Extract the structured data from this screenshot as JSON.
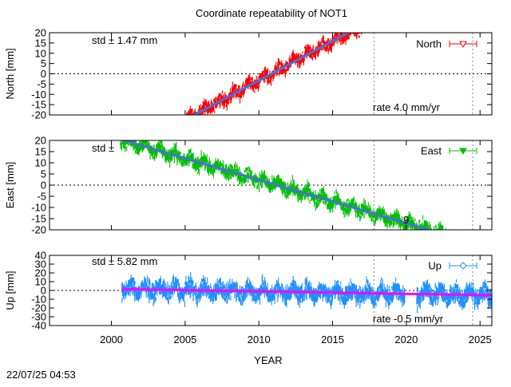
{
  "chart_data": {
    "type": "scatter",
    "title": "Coordinate repeatability of NOT1",
    "xlabel": "YEAR",
    "xlim": [
      1995.8,
      2025.8
    ],
    "xticks": [
      2000,
      2005,
      2010,
      2015,
      2020,
      2025
    ],
    "vlines": [
      2017.8,
      2024.5
    ],
    "timestamp": "22/07/25 04:53",
    "panels": [
      {
        "name": "North",
        "ylabel": "North [mm]",
        "legend": "North",
        "color": "#ff0000",
        "marker": "open-down-triangle",
        "ylim": [
          -20,
          20
        ],
        "yticks": [
          20,
          15,
          10,
          5,
          0,
          -5,
          -10,
          -15,
          -20
        ],
        "std_label": "std ± 1.47 mm",
        "rate_label": "rate  4.0 mm/yr",
        "x_range": [
          2005.0,
          2017.0
        ],
        "trend": {
          "x": [
            2005.5,
            2016.2
          ],
          "y": [
            -20.5,
            20.5
          ]
        },
        "scatter_amp": 4.5,
        "trend_color": "#4a6ee0"
      },
      {
        "name": "East",
        "ylabel": "East [mm]",
        "legend": "East",
        "color": "#00c000",
        "marker": "filled-down-triangle",
        "ylim": [
          -20,
          20
        ],
        "yticks": [
          20,
          15,
          10,
          5,
          0,
          -5,
          -10,
          -15,
          -20
        ],
        "std_label": "std ±",
        "rate_label": "9",
        "x_range": [
          2000.6,
          2023.2
        ],
        "trend": {
          "x": [
            2000.6,
            2021.8
          ],
          "y": [
            20.5,
            -20.5
          ]
        },
        "scatter_amp": 4.5,
        "trend_color": "#4a6ee0"
      },
      {
        "name": "Up",
        "ylabel": "Up [mm]",
        "legend": "Up",
        "color": "#1e90ff",
        "marker": "open-diamond",
        "ylim": [
          -40,
          40
        ],
        "yticks": [
          40,
          30,
          20,
          10,
          0,
          -10,
          -20,
          -30,
          -40
        ],
        "std_label": "std ± 5.82 mm",
        "rate_label": "rate -0.5 mm/yr",
        "x_range": [
          2000.7,
          2025.8
        ],
        "trend": {
          "x": [
            2000.7,
            2025.8
          ],
          "y": [
            1.5,
            -5.5
          ]
        },
        "scatter_amp": 14,
        "trend_color": "#ff00ff"
      }
    ]
  }
}
